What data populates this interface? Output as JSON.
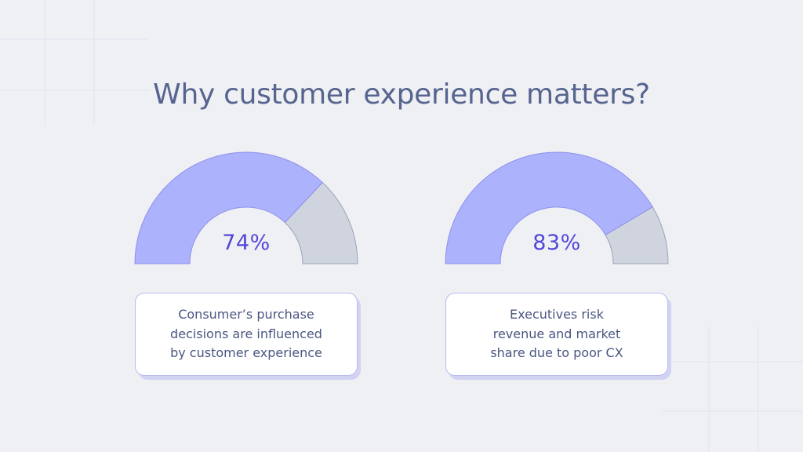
{
  "title": "Why customer experience matters?",
  "colors": {
    "background": "#eff0f4",
    "title": "#56648f",
    "filled_arc": "#adb2fc",
    "remaining_arc": "#cfd4de",
    "value_text": "#5247d9",
    "card_border": "#b9bbef",
    "card_text": "#4a5680"
  },
  "chart_data": [
    {
      "type": "pie",
      "variant": "half-donut gauge",
      "categories": [
        "filled",
        "remaining"
      ],
      "values": [
        74,
        26
      ],
      "value_label": "74%",
      "description": "Consumer’s purchase decisions are influenced by customer experience"
    },
    {
      "type": "pie",
      "variant": "half-donut gauge",
      "categories": [
        "filled",
        "remaining"
      ],
      "values": [
        83,
        17
      ],
      "value_label": "83%",
      "description": "Executives risk revenue and market share due to poor CX"
    }
  ],
  "cards": [
    {
      "text": "Consumer’s purchase\ndecisions are influenced\nby customer experience"
    },
    {
      "text": "Executives risk\nrevenue and market\nshare due to poor CX"
    }
  ]
}
